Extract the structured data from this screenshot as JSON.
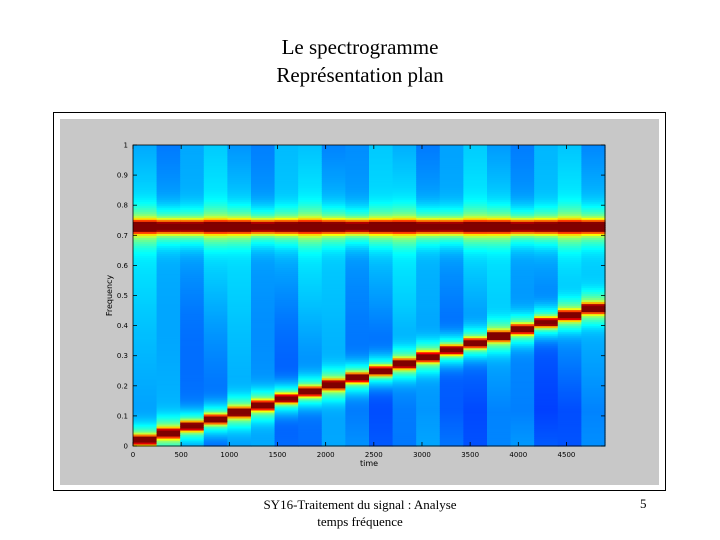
{
  "slide": {
    "title_line1": "Le spectrogramme",
    "title_line2": "Représentation plan",
    "footer_line1": "SY16-Traitement du signal : Analyse",
    "footer_line2": "temps fréquence",
    "page_number": "5"
  },
  "chart_data": {
    "type": "heatmap",
    "title": "",
    "xlabel": "time",
    "ylabel": "Frequency",
    "xlim": [
      0,
      4900
    ],
    "ylim": [
      0,
      1
    ],
    "x_ticks": [
      0,
      500,
      1000,
      1500,
      2000,
      2500,
      3000,
      3500,
      4000,
      4500
    ],
    "x_tick_labels": [
      "0",
      "500",
      "1000",
      "1500",
      "2000",
      "2500",
      "3000",
      "3500",
      "4000",
      "4500"
    ],
    "y_ticks": [
      0,
      0.1,
      0.2,
      0.3,
      0.4,
      0.5,
      0.6,
      0.7,
      0.8,
      0.9,
      1
    ],
    "y_tick_labels": [
      "0",
      "0.1",
      "0.2",
      "0.3",
      "0.4",
      "0.5",
      "0.6",
      "0.7",
      "0.8",
      "0.9",
      "1"
    ],
    "colormap": "jet",
    "components": [
      {
        "kind": "constant_tone",
        "frequency": 0.73
      },
      {
        "kind": "linear_chirp",
        "time": [
          0,
          4900
        ],
        "frequency": [
          0.01,
          0.47
        ]
      }
    ],
    "n_time_bins": 20
  }
}
